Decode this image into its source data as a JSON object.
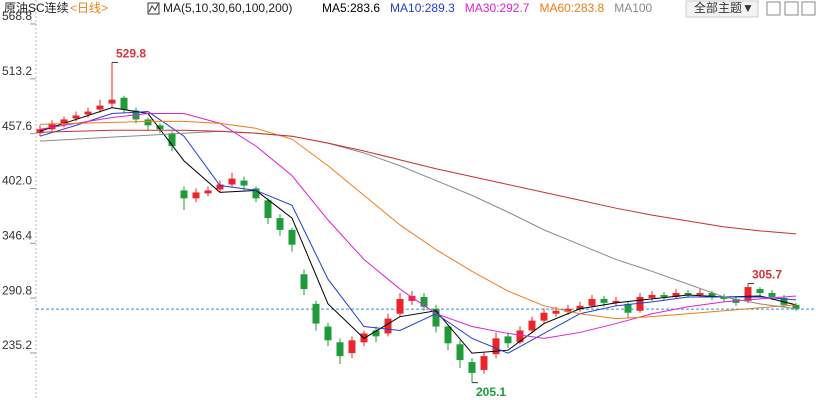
{
  "header": {
    "instrument": "原油SC连续",
    "period": "<日线>",
    "ma_label": "MA(5,10,30,60,100,200)",
    "theme": "全部主题▼"
  },
  "chart_data": {
    "type": "candlestick",
    "up_color": "#e8262b",
    "down_color": "#1f9b3a",
    "ylim": [
      187.5,
      593.1
    ],
    "yticks": [
      568.8,
      513.2,
      457.6,
      {
        "value": 402,
        "label": "402.0"
      },
      346.4,
      290.8,
      235.2
    ],
    "reference_line": 279.7,
    "candles": [
      [
        458,
        462,
        466,
        455
      ],
      [
        462,
        468,
        471,
        460
      ],
      [
        467,
        472,
        475,
        464
      ],
      [
        473,
        476,
        480,
        470
      ],
      [
        477,
        480,
        484,
        474
      ],
      [
        482,
        486,
        492,
        479
      ],
      [
        488,
        492,
        529.8,
        484
      ],
      [
        494,
        482,
        496,
        478
      ],
      [
        481,
        472,
        484,
        468
      ],
      [
        472,
        466,
        474,
        461
      ],
      [
        466,
        462,
        468,
        458
      ],
      [
        458,
        445,
        460,
        440
      ],
      [
        400,
        392,
        404,
        380
      ],
      [
        392,
        398,
        402,
        388
      ],
      [
        397,
        400,
        404,
        394
      ],
      [
        401,
        406,
        410,
        398
      ],
      [
        406,
        412,
        418,
        404
      ],
      [
        410,
        405,
        414,
        400
      ],
      [
        402,
        392,
        404,
        388
      ],
      [
        390,
        372,
        392,
        366
      ],
      [
        372,
        360,
        376,
        354
      ],
      [
        360,
        345,
        362,
        338
      ],
      [
        315,
        300,
        320,
        294
      ],
      [
        285,
        265,
        288,
        258
      ],
      [
        262,
        248,
        266,
        242
      ],
      [
        246,
        232,
        250,
        224
      ],
      [
        235,
        248,
        252,
        230
      ],
      [
        246,
        255,
        258,
        242
      ],
      [
        258,
        252,
        262,
        246
      ],
      [
        255,
        270,
        275,
        252
      ],
      [
        275,
        290,
        296,
        272
      ],
      [
        288,
        293,
        298,
        284
      ],
      [
        292,
        282,
        296,
        278
      ],
      [
        280,
        262,
        284,
        256
      ],
      [
        262,
        245,
        264,
        238
      ],
      [
        244,
        228,
        248,
        220
      ],
      [
        226,
        215,
        230,
        205.1
      ],
      [
        218,
        232,
        236,
        214
      ],
      [
        234,
        250,
        256,
        230
      ],
      [
        252,
        245,
        256,
        240
      ],
      [
        246,
        258,
        262,
        244
      ],
      [
        258,
        268,
        272,
        255
      ],
      [
        268,
        276,
        280,
        265
      ],
      [
        275,
        278,
        282,
        272
      ],
      [
        277,
        280,
        284,
        274
      ],
      [
        280,
        283,
        287,
        277
      ],
      [
        283,
        290,
        294,
        281
      ],
      [
        290,
        286,
        293,
        282
      ],
      [
        286,
        288,
        292,
        283
      ],
      [
        285,
        276,
        288,
        270
      ],
      [
        278,
        292,
        296,
        276
      ],
      [
        291,
        294,
        298,
        288
      ],
      [
        294,
        292,
        297,
        289
      ],
      [
        292,
        296,
        300,
        290
      ],
      [
        296,
        294,
        299,
        291
      ],
      [
        294,
        296,
        300,
        292
      ],
      [
        296,
        292,
        298,
        289
      ],
      [
        292,
        290,
        295,
        287
      ],
      [
        290,
        286,
        293,
        283
      ],
      [
        288,
        302,
        305.7,
        286
      ],
      [
        300,
        296,
        302,
        293
      ],
      [
        296,
        292,
        299,
        289
      ],
      [
        291,
        284,
        294,
        281
      ],
      [
        284,
        280,
        286,
        278
      ]
    ],
    "annotations": [
      {
        "candle": 6,
        "field": 2
      },
      {
        "candle": 59,
        "field": 2
      },
      {
        "candle": 36,
        "field": 3
      }
    ],
    "series": [
      {
        "name": "MA5:283.6",
        "color": "#000000",
        "x": [
          0,
          3,
          6,
          9,
          12,
          15,
          18,
          21,
          24,
          27,
          30,
          33,
          36,
          39,
          42,
          45,
          48,
          51,
          54,
          57,
          60,
          63
        ],
        "values": [
          460,
          472,
          484,
          478,
          430,
          398,
          400,
          372,
          285,
          250,
          272,
          278,
          235,
          238,
          265,
          280,
          286,
          290,
          294,
          292,
          293,
          284
        ]
      },
      {
        "name": "MA10:289.3",
        "color": "#1f3fd6",
        "x": [
          0,
          3,
          6,
          9,
          12,
          15,
          18,
          21,
          24,
          27,
          30,
          33,
          36,
          39,
          42,
          45,
          48,
          51,
          54,
          57,
          60,
          63
        ],
        "values": [
          455,
          466,
          478,
          480,
          455,
          405,
          400,
          385,
          310,
          262,
          258,
          275,
          250,
          235,
          255,
          275,
          283,
          287,
          292,
          292,
          292,
          289
        ]
      },
      {
        "name": "MA30:292.7",
        "color": "#e020d8",
        "x": [
          0,
          3,
          6,
          9,
          12,
          15,
          18,
          21,
          24,
          27,
          30,
          33,
          36,
          39,
          42,
          45,
          48,
          51,
          54,
          57,
          60,
          63
        ],
        "values": [
          462,
          468,
          474,
          478,
          478,
          468,
          445,
          415,
          370,
          330,
          300,
          275,
          262,
          255,
          250,
          256,
          265,
          275,
          282,
          287,
          290,
          293
        ]
      },
      {
        "name": "MA60:283.8",
        "color": "#f07d12",
        "x": [
          0,
          3,
          6,
          9,
          12,
          15,
          18,
          21,
          24,
          27,
          30,
          33,
          36,
          39,
          42,
          45,
          48,
          51,
          54,
          57,
          60,
          63
        ],
        "values": [
          467,
          468,
          469,
          470,
          470,
          468,
          463,
          452,
          425,
          395,
          365,
          340,
          318,
          298,
          283,
          275,
          270,
          272,
          275,
          278,
          281,
          284
        ]
      },
      {
        "name": "MA100",
        "color": "#8a8a8a",
        "x": [
          0,
          3,
          6,
          9,
          12,
          15,
          18,
          21,
          24,
          27,
          30,
          33,
          36,
          39,
          42,
          45,
          48,
          51,
          54,
          57,
          60,
          63
        ],
        "values": [
          450,
          452,
          454,
          456,
          458,
          460,
          458,
          455,
          448,
          438,
          425,
          410,
          395,
          378,
          360,
          345,
          330,
          318,
          305,
          292,
          285,
          280
        ]
      },
      {
        "color": "#c8322a",
        "x": [
          0,
          3,
          6,
          9,
          12,
          15,
          18,
          21,
          24,
          27,
          30,
          33,
          36,
          39,
          42,
          45,
          48,
          51,
          54,
          57,
          60,
          63
        ],
        "values": [
          459,
          460,
          461,
          461,
          461,
          460,
          458,
          455,
          448,
          440,
          431,
          422,
          414,
          406,
          398,
          390,
          382,
          375,
          369,
          363,
          359,
          356
        ]
      }
    ]
  }
}
